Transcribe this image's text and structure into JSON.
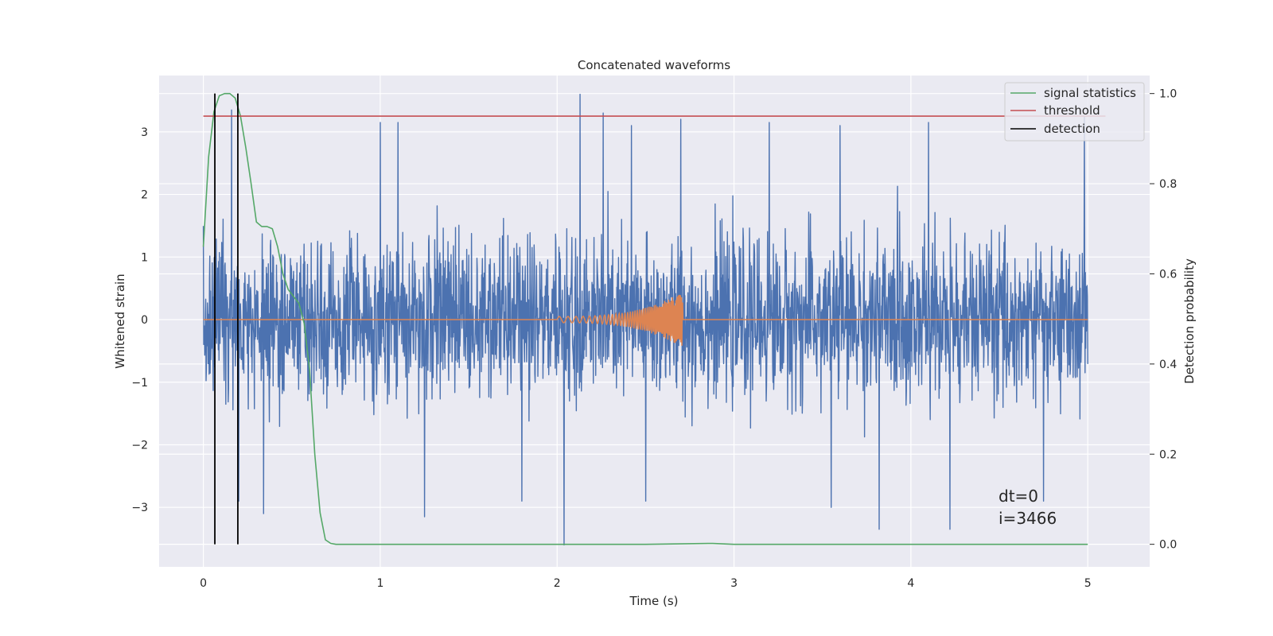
{
  "chart_data": {
    "type": "line",
    "title": "Concatenated waveforms",
    "xlabel": "Time (s)",
    "ylabel_left": "Whitened strain",
    "ylabel_right": "Detection probability",
    "xlim": [
      -0.25,
      5.35
    ],
    "ylim_left": [
      -3.95,
      3.9
    ],
    "ylim_right": [
      -0.05,
      1.04
    ],
    "x_ticks": [
      0,
      1,
      2,
      3,
      4,
      5
    ],
    "y_ticks_left": [
      -3,
      -2,
      -1,
      0,
      1,
      2,
      3
    ],
    "y_ticks_right": [
      0.0,
      0.2,
      0.4,
      0.6,
      0.8,
      1.0
    ],
    "y_tick_labels_left": [
      "−3",
      "−2",
      "−1",
      "0",
      "1",
      "2",
      "3"
    ],
    "y_tick_labels_right": [
      "0.0",
      "0.2",
      "0.4",
      "0.6",
      "0.8",
      "1.0"
    ],
    "grid": true,
    "legend_position": "top-right",
    "series": [
      {
        "name": "",
        "axis": "left",
        "color": "#4c72b0",
        "kind": "noise",
        "x_range": [
          0,
          5
        ],
        "typical_abs_max": 2.3,
        "peaks": [
          [
            0.16,
            3.35
          ],
          [
            0.2,
            3.2
          ],
          [
            1.0,
            3.15
          ],
          [
            1.1,
            3.15
          ],
          [
            2.13,
            3.6
          ],
          [
            2.26,
            3.3
          ],
          [
            2.42,
            3.1
          ],
          [
            2.7,
            3.2
          ],
          [
            3.2,
            3.15
          ],
          [
            3.6,
            3.1
          ],
          [
            4.1,
            3.15
          ],
          [
            4.98,
            3.25
          ]
        ],
        "troughs": [
          [
            0.2,
            -2.9
          ],
          [
            0.34,
            -3.1
          ],
          [
            1.25,
            -3.15
          ],
          [
            1.8,
            -2.9
          ],
          [
            2.04,
            -3.6
          ],
          [
            2.5,
            -2.9
          ],
          [
            3.55,
            -3.0
          ],
          [
            3.82,
            -3.35
          ],
          [
            4.22,
            -3.35
          ],
          [
            4.75,
            -2.9
          ]
        ]
      },
      {
        "name": "",
        "axis": "left",
        "color": "#dd8452",
        "kind": "chirp",
        "x_range": [
          0,
          5
        ],
        "chirp_start": 2.0,
        "chirp_end": 2.71,
        "amplitude_start": 0.05,
        "amplitude_end": 0.45
      },
      {
        "name": "signal statistics",
        "axis": "right",
        "color": "#55a868",
        "x": [
          0.0,
          0.03,
          0.06,
          0.09,
          0.12,
          0.15,
          0.18,
          0.21,
          0.24,
          0.27,
          0.3,
          0.33,
          0.36,
          0.39,
          0.42,
          0.45,
          0.48,
          0.51,
          0.54,
          0.57,
          0.6,
          0.63,
          0.66,
          0.69,
          0.72,
          0.75,
          0.8,
          1.0,
          1.5,
          2.0,
          2.5,
          2.88,
          3.0,
          3.5,
          4.0,
          4.5,
          5.0
        ],
        "y": [
          0.66,
          0.86,
          0.96,
          0.995,
          1.0,
          1.0,
          0.99,
          0.95,
          0.88,
          0.8,
          0.715,
          0.705,
          0.705,
          0.7,
          0.66,
          0.6,
          0.565,
          0.55,
          0.535,
          0.49,
          0.39,
          0.2,
          0.07,
          0.01,
          0.002,
          0.0,
          0.0,
          0.0,
          0.0,
          0.0,
          0.0,
          0.002,
          0.0,
          0.0,
          0.0,
          0.0,
          0.0
        ]
      },
      {
        "name": "threshold",
        "axis": "right",
        "color": "#c44e52",
        "x": [
          0.0,
          5.1
        ],
        "y": [
          0.95,
          0.95
        ]
      },
      {
        "name": "detection",
        "axis": "right",
        "color": "#000000",
        "kind": "vlines",
        "x": [
          0.065,
          0.195
        ],
        "y_range": [
          0.0,
          1.0
        ]
      }
    ],
    "annotations": [
      "dt=0",
      "i=3466"
    ]
  }
}
